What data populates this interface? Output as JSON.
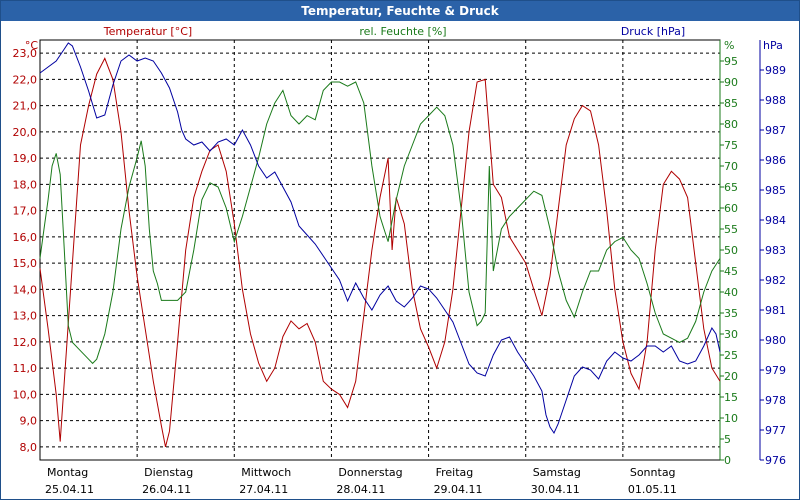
{
  "window": {
    "title": "Temperatur, Feuchte & Druck"
  },
  "chart_data": {
    "type": "line",
    "title": "Temperatur, Feuchte & Druck",
    "colors": {
      "temperature": "#b00000",
      "humidity": "#1a7a1a",
      "pressure": "#0000a0",
      "grid": "#000000"
    },
    "axes": {
      "left": {
        "unit": "°C",
        "label": "Temperatur [°C]",
        "min": 7.5,
        "max": 23.5,
        "ticks": [
          "8,0",
          "9,0",
          "10,0",
          "11,0",
          "12,0",
          "13,0",
          "14,0",
          "15,0",
          "16,0",
          "17,0",
          "18,0",
          "19,0",
          "20,0",
          "21,0",
          "22,0",
          "23,0"
        ]
      },
      "right1": {
        "unit": "%",
        "label": "rel. Feuchte [%]",
        "min": 0,
        "max": 100,
        "ticks": [
          "0",
          "5",
          "10",
          "15",
          "20",
          "25",
          "30",
          "35",
          "40",
          "45",
          "50",
          "55",
          "60",
          "65",
          "70",
          "75",
          "80",
          "85",
          "90",
          "95"
        ]
      },
      "right2": {
        "unit": "hPa",
        "label": "Druck [hPa]",
        "min": 976,
        "max": 990,
        "ticks": [
          "976",
          "977",
          "978",
          "979",
          "980",
          "981",
          "982",
          "983",
          "984",
          "985",
          "986",
          "987",
          "988",
          "989"
        ]
      }
    },
    "days": [
      {
        "name": "Montag",
        "date": "25.04.11"
      },
      {
        "name": "Dienstag",
        "date": "26.04.11"
      },
      {
        "name": "Mittwoch",
        "date": "27.04.11"
      },
      {
        "name": "Donnerstag",
        "date": "28.04.11"
      },
      {
        "name": "Freitag",
        "date": "29.04.11"
      },
      {
        "name": "Samstag",
        "date": "30.04.11"
      },
      {
        "name": "Sonntag",
        "date": "01.05.11"
      }
    ],
    "x_unit": "hours since 25.04.11 00:00",
    "x_range": [
      0,
      168
    ],
    "grid": true,
    "series": [
      {
        "name": "Temperatur [°C]",
        "axis": "left",
        "color": "#b00000",
        "points": [
          [
            0,
            14.8
          ],
          [
            2,
            12.5
          ],
          [
            4,
            10.0
          ],
          [
            5,
            8.2
          ],
          [
            6,
            10.5
          ],
          [
            8,
            15.0
          ],
          [
            10,
            19.5
          ],
          [
            12,
            21.0
          ],
          [
            14,
            22.2
          ],
          [
            16,
            22.8
          ],
          [
            18,
            22.0
          ],
          [
            20,
            20.0
          ],
          [
            22,
            17.0
          ],
          [
            24,
            14.5
          ],
          [
            26,
            12.5
          ],
          [
            28,
            10.5
          ],
          [
            30,
            8.8
          ],
          [
            31,
            8.0
          ],
          [
            32,
            8.6
          ],
          [
            34,
            12.0
          ],
          [
            36,
            15.5
          ],
          [
            38,
            17.5
          ],
          [
            40,
            18.5
          ],
          [
            42,
            19.3
          ],
          [
            44,
            19.5
          ],
          [
            46,
            18.5
          ],
          [
            48,
            16.5
          ],
          [
            50,
            14.0
          ],
          [
            52,
            12.3
          ],
          [
            54,
            11.2
          ],
          [
            56,
            10.5
          ],
          [
            58,
            11.0
          ],
          [
            60,
            12.2
          ],
          [
            62,
            12.8
          ],
          [
            64,
            12.5
          ],
          [
            66,
            12.7
          ],
          [
            68,
            12.0
          ],
          [
            70,
            10.5
          ],
          [
            72,
            10.2
          ],
          [
            74,
            10.0
          ],
          [
            76,
            9.5
          ],
          [
            78,
            10.5
          ],
          [
            80,
            13.0
          ],
          [
            82,
            15.5
          ],
          [
            84,
            17.5
          ],
          [
            86,
            19.0
          ],
          [
            87,
            15.5
          ],
          [
            88,
            17.5
          ],
          [
            90,
            16.5
          ],
          [
            92,
            14.0
          ],
          [
            94,
            12.5
          ],
          [
            96,
            11.8
          ],
          [
            98,
            11.0
          ],
          [
            100,
            12.0
          ],
          [
            102,
            14.0
          ],
          [
            104,
            17.0
          ],
          [
            106,
            20.0
          ],
          [
            108,
            21.9
          ],
          [
            110,
            22.0
          ],
          [
            112,
            18.0
          ],
          [
            114,
            17.5
          ],
          [
            116,
            16.0
          ],
          [
            118,
            15.5
          ],
          [
            120,
            15.0
          ],
          [
            122,
            14.0
          ],
          [
            124,
            13.0
          ],
          [
            126,
            14.5
          ],
          [
            128,
            17.0
          ],
          [
            130,
            19.5
          ],
          [
            132,
            20.5
          ],
          [
            134,
            21.0
          ],
          [
            136,
            20.8
          ],
          [
            138,
            19.5
          ],
          [
            140,
            17.0
          ],
          [
            142,
            14.0
          ],
          [
            144,
            12.0
          ],
          [
            146,
            10.8
          ],
          [
            148,
            10.2
          ],
          [
            150,
            12.0
          ],
          [
            152,
            15.5
          ],
          [
            154,
            18.0
          ],
          [
            156,
            18.5
          ],
          [
            158,
            18.2
          ],
          [
            160,
            17.5
          ],
          [
            162,
            15.0
          ],
          [
            164,
            12.5
          ],
          [
            166,
            11.0
          ],
          [
            168,
            10.5
          ]
        ]
      },
      {
        "name": "rel. Feuchte [%]",
        "axis": "right1",
        "color": "#1a7a1a",
        "points": [
          [
            0,
            48
          ],
          [
            1,
            55
          ],
          [
            2,
            62
          ],
          [
            3,
            70
          ],
          [
            4,
            73
          ],
          [
            5,
            68
          ],
          [
            6,
            50
          ],
          [
            7,
            32
          ],
          [
            8,
            28
          ],
          [
            10,
            26
          ],
          [
            12,
            24
          ],
          [
            13,
            23
          ],
          [
            14,
            24
          ],
          [
            16,
            30
          ],
          [
            18,
            40
          ],
          [
            20,
            55
          ],
          [
            22,
            65
          ],
          [
            24,
            72
          ],
          [
            25,
            76
          ],
          [
            26,
            70
          ],
          [
            27,
            55
          ],
          [
            28,
            45
          ],
          [
            29,
            42
          ],
          [
            30,
            38
          ],
          [
            32,
            38
          ],
          [
            34,
            38
          ],
          [
            36,
            40
          ],
          [
            38,
            50
          ],
          [
            40,
            62
          ],
          [
            42,
            66
          ],
          [
            44,
            65
          ],
          [
            46,
            60
          ],
          [
            48,
            52
          ],
          [
            50,
            58
          ],
          [
            52,
            65
          ],
          [
            54,
            72
          ],
          [
            56,
            80
          ],
          [
            58,
            85
          ],
          [
            60,
            88
          ],
          [
            62,
            82
          ],
          [
            64,
            80
          ],
          [
            66,
            82
          ],
          [
            68,
            81
          ],
          [
            70,
            88
          ],
          [
            72,
            90
          ],
          [
            74,
            90
          ],
          [
            76,
            89
          ],
          [
            78,
            90
          ],
          [
            80,
            85
          ],
          [
            82,
            70
          ],
          [
            84,
            58
          ],
          [
            85,
            55
          ],
          [
            86,
            52
          ],
          [
            88,
            62
          ],
          [
            90,
            70
          ],
          [
            92,
            75
          ],
          [
            94,
            80
          ],
          [
            96,
            82
          ],
          [
            98,
            84
          ],
          [
            100,
            82
          ],
          [
            102,
            75
          ],
          [
            104,
            60
          ],
          [
            106,
            40
          ],
          [
            108,
            32
          ],
          [
            109,
            33
          ],
          [
            110,
            35
          ],
          [
            111,
            70
          ],
          [
            112,
            45
          ],
          [
            114,
            55
          ],
          [
            116,
            58
          ],
          [
            118,
            60
          ],
          [
            120,
            62
          ],
          [
            122,
            64
          ],
          [
            124,
            63
          ],
          [
            126,
            55
          ],
          [
            128,
            45
          ],
          [
            130,
            38
          ],
          [
            132,
            34
          ],
          [
            134,
            40
          ],
          [
            136,
            45
          ],
          [
            138,
            45
          ],
          [
            140,
            50
          ],
          [
            142,
            52
          ],
          [
            144,
            53
          ],
          [
            146,
            50
          ],
          [
            148,
            48
          ],
          [
            150,
            42
          ],
          [
            152,
            35
          ],
          [
            154,
            30
          ],
          [
            156,
            29
          ],
          [
            158,
            28
          ],
          [
            160,
            29
          ],
          [
            162,
            33
          ],
          [
            164,
            40
          ],
          [
            166,
            45
          ],
          [
            168,
            48
          ]
        ]
      },
      {
        "name": "Druck [hPa]",
        "axis": "right2",
        "color": "#0000a0",
        "points": [
          [
            0,
            988.9
          ],
          [
            2,
            989.1
          ],
          [
            4,
            989.3
          ],
          [
            6,
            989.7
          ],
          [
            7,
            989.9
          ],
          [
            8,
            989.8
          ],
          [
            10,
            989.1
          ],
          [
            12,
            988.3
          ],
          [
            14,
            987.4
          ],
          [
            16,
            987.5
          ],
          [
            18,
            988.5
          ],
          [
            20,
            989.3
          ],
          [
            22,
            989.5
          ],
          [
            24,
            989.3
          ],
          [
            26,
            989.4
          ],
          [
            28,
            989.3
          ],
          [
            30,
            988.9
          ],
          [
            32,
            988.4
          ],
          [
            34,
            987.6
          ],
          [
            35,
            987.0
          ],
          [
            36,
            986.7
          ],
          [
            38,
            986.5
          ],
          [
            40,
            986.6
          ],
          [
            42,
            986.3
          ],
          [
            44,
            986.6
          ],
          [
            46,
            986.7
          ],
          [
            48,
            986.5
          ],
          [
            50,
            987.0
          ],
          [
            52,
            986.5
          ],
          [
            54,
            985.8
          ],
          [
            56,
            985.4
          ],
          [
            58,
            985.6
          ],
          [
            60,
            985.1
          ],
          [
            62,
            984.6
          ],
          [
            64,
            983.8
          ],
          [
            66,
            983.5
          ],
          [
            68,
            983.2
          ],
          [
            70,
            982.8
          ],
          [
            72,
            982.4
          ],
          [
            74,
            982.0
          ],
          [
            76,
            981.3
          ],
          [
            78,
            981.9
          ],
          [
            80,
            981.4
          ],
          [
            82,
            981.0
          ],
          [
            84,
            981.5
          ],
          [
            86,
            981.8
          ],
          [
            88,
            981.3
          ],
          [
            90,
            981.1
          ],
          [
            92,
            981.4
          ],
          [
            94,
            981.8
          ],
          [
            96,
            981.7
          ],
          [
            98,
            981.4
          ],
          [
            100,
            981.0
          ],
          [
            102,
            980.6
          ],
          [
            104,
            979.9
          ],
          [
            106,
            979.2
          ],
          [
            108,
            978.9
          ],
          [
            110,
            978.8
          ],
          [
            112,
            979.5
          ],
          [
            114,
            980.0
          ],
          [
            116,
            980.1
          ],
          [
            118,
            979.6
          ],
          [
            120,
            979.2
          ],
          [
            122,
            978.8
          ],
          [
            124,
            978.3
          ],
          [
            125,
            977.5
          ],
          [
            126,
            977.1
          ],
          [
            127,
            976.9
          ],
          [
            128,
            977.2
          ],
          [
            130,
            978.0
          ],
          [
            132,
            978.8
          ],
          [
            134,
            979.1
          ],
          [
            136,
            979.0
          ],
          [
            138,
            978.7
          ],
          [
            140,
            979.3
          ],
          [
            142,
            979.6
          ],
          [
            144,
            979.4
          ],
          [
            146,
            979.3
          ],
          [
            148,
            979.5
          ],
          [
            150,
            979.8
          ],
          [
            152,
            979.8
          ],
          [
            154,
            979.6
          ],
          [
            156,
            979.8
          ],
          [
            158,
            979.3
          ],
          [
            160,
            979.2
          ],
          [
            162,
            979.3
          ],
          [
            164,
            979.8
          ],
          [
            166,
            980.4
          ],
          [
            167,
            980.2
          ],
          [
            168,
            979.6
          ]
        ]
      }
    ]
  }
}
